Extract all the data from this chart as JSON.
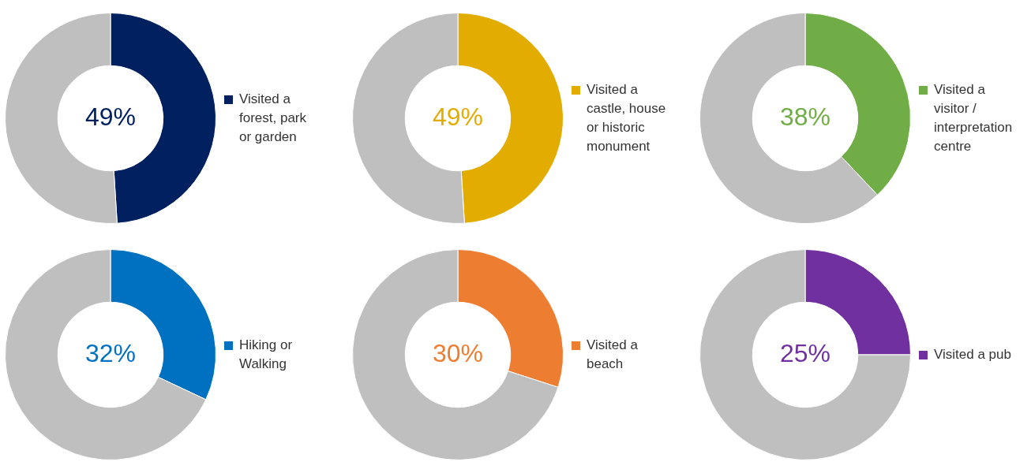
{
  "chart_data": [
    {
      "type": "donut",
      "categories": [
        "Visited a forest, park or garden",
        null
      ],
      "values": [
        49,
        51
      ],
      "colors": [
        "#002060",
        "#bfbfbf"
      ],
      "value_labels": [
        "49%",
        null
      ],
      "legend": "right"
    },
    {
      "type": "donut",
      "categories": [
        "Visited a castle, house or historic monument",
        null
      ],
      "values": [
        49,
        51
      ],
      "colors": [
        "#e2ac00",
        "#bfbfbf"
      ],
      "value_labels": [
        "49%",
        null
      ],
      "legend": "right"
    },
    {
      "type": "donut",
      "categories": [
        "Visited a visitor / interpretation centre",
        null
      ],
      "values": [
        38,
        62
      ],
      "colors": [
        "#70ad47",
        "#bfbfbf"
      ],
      "value_labels": [
        "38%",
        null
      ],
      "legend": "right"
    },
    {
      "type": "donut",
      "categories": [
        "Hiking or Walking",
        null
      ],
      "values": [
        32,
        68
      ],
      "colors": [
        "#0070c0",
        "#bfbfbf"
      ],
      "value_labels": [
        "32%",
        null
      ],
      "legend": "right"
    },
    {
      "type": "donut",
      "categories": [
        "Visited a beach",
        null
      ],
      "values": [
        30,
        70
      ],
      "colors": [
        "#ed7d31",
        "#bfbfbf"
      ],
      "value_labels": [
        "30%",
        null
      ],
      "legend": "right"
    },
    {
      "type": "donut",
      "categories": [
        "Visited a pub",
        null
      ],
      "values": [
        25,
        75
      ],
      "colors": [
        "#7030a0",
        "#bfbfbf"
      ],
      "value_labels": [
        "25%",
        null
      ],
      "legend": "right"
    }
  ]
}
